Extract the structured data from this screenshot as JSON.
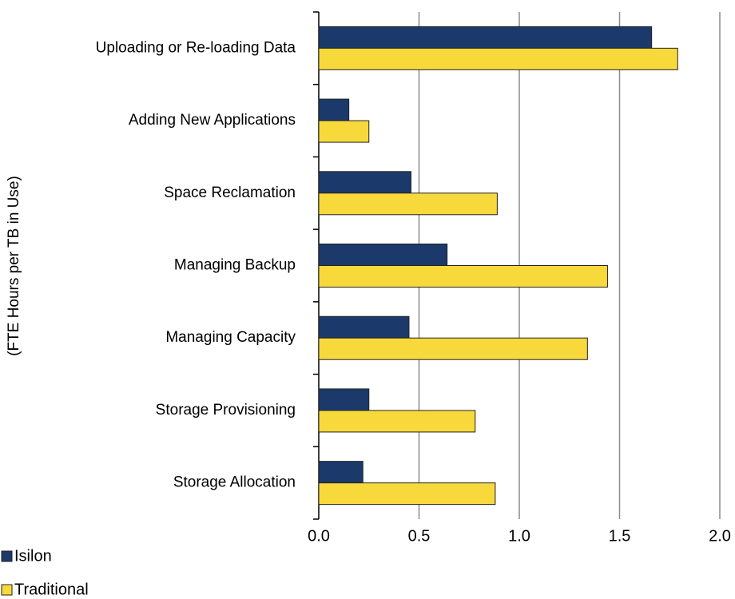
{
  "chart_data": {
    "type": "bar",
    "orientation": "horizontal",
    "y_label": "(FTE Hours per TB in Use)",
    "categories": [
      "Uploading or Re-loading Data",
      "Adding New Applications",
      "Space Reclamation",
      "Managing Backup",
      "Managing Capacity",
      "Storage Provisioning",
      "Storage Allocation"
    ],
    "series": [
      {
        "name": "Isilon",
        "color": "#1b3a6b",
        "values": [
          1.66,
          0.15,
          0.46,
          0.64,
          0.45,
          0.25,
          0.22
        ]
      },
      {
        "name": "Traditional",
        "color": "#f7d93c",
        "values": [
          1.79,
          0.25,
          0.89,
          1.44,
          1.34,
          0.78,
          0.88
        ]
      }
    ],
    "xlim": [
      0,
      2
    ],
    "xticks": [
      {
        "value": 0,
        "label": "0.0"
      },
      {
        "value": 0.5,
        "label": "0.5"
      },
      {
        "value": 1,
        "label": "1.0"
      },
      {
        "value": 1.5,
        "label": "1.5"
      },
      {
        "value": 2,
        "label": "2.0"
      }
    ],
    "grid": true,
    "legend": "bottom-left"
  }
}
